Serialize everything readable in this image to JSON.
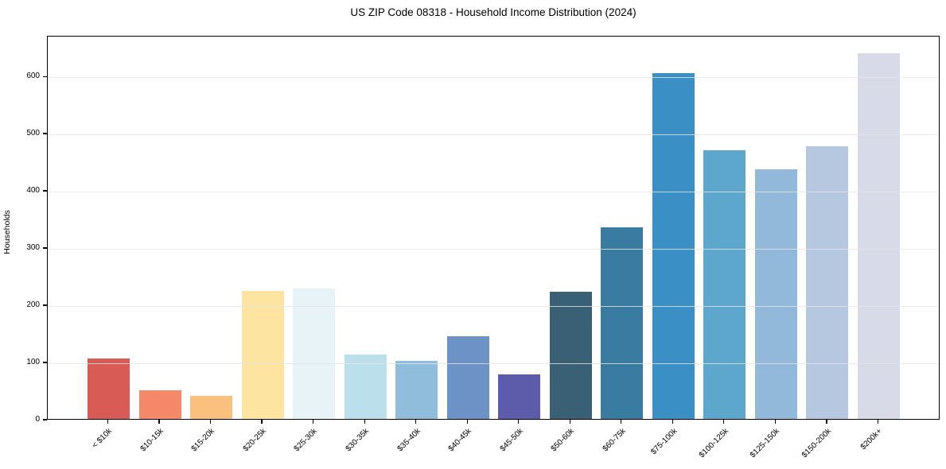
{
  "chart_data": {
    "type": "bar",
    "title": "US ZIP Code 08318 - Household Income Distribution (2024)",
    "xlabel": "",
    "ylabel": "Households",
    "categories": [
      "< $10k",
      "$10-15k",
      "$15-20k",
      "$20-25k",
      "$25-30k",
      "$30-35k",
      "$35-40k",
      "$40-45k",
      "$45-50k",
      "$50-60k",
      "$60-75k",
      "$75-100k",
      "$100-125k",
      "$125-150k",
      "$150-200k",
      "$200k+"
    ],
    "values": [
      105,
      50,
      40,
      224,
      228,
      112,
      102,
      144,
      78,
      222,
      335,
      605,
      470,
      436,
      477,
      639
    ],
    "bar_colors": [
      "#d85c55",
      "#f48869",
      "#fac17e",
      "#fde4a1",
      "#e7f3f7",
      "#bcdfec",
      "#90bddc",
      "#6d93c6",
      "#5d5cab",
      "#396074",
      "#3a7ba1",
      "#3a90c5",
      "#5ea7cc",
      "#92b8da",
      "#b6c8e0",
      "#d8dae8"
    ],
    "ylim": [
      0,
      671
    ],
    "yticks": [
      0,
      100,
      200,
      300,
      400,
      500,
      600
    ],
    "grid": "horizontal",
    "gridline_color": "#e9e9e9",
    "legend": "none",
    "background": "#ffffff",
    "spine_color": "#000000"
  }
}
